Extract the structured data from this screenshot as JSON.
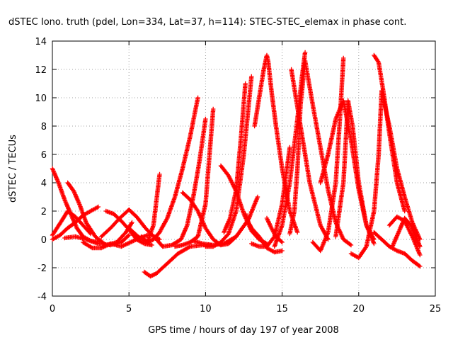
{
  "chart_data": {
    "type": "scatter",
    "title": "dSTEC Iono. truth (pdel, Lon=334, Lat=37, h=114): STEC-STEC_elemax in phase cont.",
    "xlabel": "GPS time / hours of day 197 of year 2008",
    "ylabel": "dSTEC  / TECUs",
    "xlim": [
      0,
      25
    ],
    "ylim": [
      -4,
      14
    ],
    "xticks": [
      0,
      5,
      10,
      15,
      20,
      25
    ],
    "yticks": [
      -4,
      -2,
      0,
      2,
      4,
      6,
      8,
      10,
      12,
      14
    ],
    "grid": true,
    "marker": "+",
    "color": "#ff0000",
    "arcs": [
      {
        "x": [
          0.0,
          0.4,
          0.8,
          1.2,
          1.6,
          2.0,
          2.5,
          3.0
        ],
        "y": [
          5.0,
          4.0,
          2.8,
          1.8,
          0.8,
          0.2,
          -0.1,
          -0.2
        ]
      },
      {
        "x": [
          0.0,
          0.5,
          1.0,
          1.5,
          2.0,
          2.5,
          3.0
        ],
        "y": [
          0.0,
          0.3,
          0.8,
          1.2,
          1.7,
          2.0,
          2.3
        ]
      },
      {
        "x": [
          0.0,
          0.3,
          0.6,
          1.0,
          1.5,
          2.0,
          2.5
        ],
        "y": [
          0.3,
          0.8,
          1.3,
          2.0,
          1.6,
          1.0,
          0.4
        ]
      },
      {
        "x": [
          1.0,
          1.4,
          1.8,
          2.2,
          2.8,
          3.5,
          4.2,
          4.8,
          5.2
        ],
        "y": [
          4.0,
          3.4,
          2.4,
          1.2,
          0.2,
          -0.4,
          -0.2,
          0.5,
          1.2
        ]
      },
      {
        "x": [
          0.8,
          1.5,
          2.2,
          3.0,
          3.8,
          4.5,
          5.0
        ],
        "y": [
          0.1,
          0.2,
          0.0,
          -0.3,
          -0.4,
          -0.2,
          0.3
        ]
      },
      {
        "x": [
          2.0,
          2.6,
          3.2,
          3.8,
          4.5,
          5.5,
          6.2
        ],
        "y": [
          -0.2,
          -0.6,
          -0.6,
          -0.3,
          -0.5,
          0.0,
          0.3
        ]
      },
      {
        "x": [
          3.5,
          4.0,
          4.5,
          5.0,
          5.5,
          6.0,
          6.5
        ],
        "y": [
          2.0,
          1.8,
          1.3,
          0.7,
          0.0,
          -0.3,
          -0.4
        ]
      },
      {
        "x": [
          3.2,
          3.8,
          4.4,
          5.0,
          5.5,
          6.0,
          6.5,
          7.0
        ],
        "y": [
          0.2,
          0.8,
          1.5,
          2.1,
          1.6,
          0.9,
          0.3,
          0.0
        ]
      },
      {
        "x": [
          5.0,
          5.6,
          6.2,
          6.6,
          7.0
        ],
        "y": [
          0.8,
          0.2,
          -0.2,
          1.0,
          4.6
        ]
      },
      {
        "x": [
          5.8,
          6.2,
          6.6,
          7.0,
          7.5,
          8.0,
          8.5,
          9.0,
          9.5
        ],
        "y": [
          0.2,
          -0.2,
          0.0,
          0.5,
          1.5,
          3.0,
          5.0,
          7.3,
          10.0
        ]
      },
      {
        "x": [
          6.0,
          6.4,
          6.8,
          7.4,
          8.2,
          9.0,
          9.8,
          10.4
        ],
        "y": [
          -2.3,
          -2.6,
          -2.4,
          -1.8,
          -1.0,
          -0.5,
          -0.4,
          -0.4
        ]
      },
      {
        "x": [
          6.8,
          7.2,
          7.8,
          8.4,
          8.8,
          9.2,
          9.6,
          10.0
        ],
        "y": [
          0.0,
          -0.5,
          -0.4,
          0.0,
          1.0,
          3.0,
          5.5,
          8.5
        ]
      },
      {
        "x": [
          8.0,
          8.5,
          9.0,
          9.5,
          10.0,
          10.5
        ],
        "y": [
          -0.5,
          -0.4,
          -0.2,
          0.2,
          2.5,
          9.2
        ]
      },
      {
        "x": [
          8.5,
          9.0,
          9.5,
          10.0,
          10.5,
          11.0,
          11.5,
          12.0
        ],
        "y": [
          3.3,
          2.8,
          2.0,
          0.8,
          0.0,
          -0.4,
          -0.3,
          0.2
        ]
      },
      {
        "x": [
          9.2,
          9.8,
          10.5,
          11.2,
          12.0,
          12.8,
          13.4
        ],
        "y": [
          -0.1,
          -0.3,
          -0.4,
          -0.3,
          0.2,
          1.4,
          3.0
        ]
      },
      {
        "x": [
          10.0,
          10.5,
          11.0,
          11.5,
          12.0,
          12.5,
          13.0
        ],
        "y": [
          -0.5,
          -0.5,
          -0.2,
          0.4,
          2.0,
          6.0,
          11.5
        ]
      },
      {
        "x": [
          11.0,
          11.5,
          12.0,
          12.5,
          13.0,
          13.5,
          14.0
        ],
        "y": [
          5.2,
          4.5,
          3.4,
          1.8,
          0.6,
          0.0,
          -0.3
        ]
      },
      {
        "x": [
          11.2,
          11.6,
          12.0,
          12.3,
          12.6
        ],
        "y": [
          0.5,
          1.5,
          3.5,
          7.0,
          11.0
        ]
      },
      {
        "x": [
          12.6,
          12.8,
          13.0,
          13.5,
          14.0,
          14.5,
          15.0
        ],
        "y": [
          1.8,
          1.2,
          0.8,
          0.2,
          -0.6,
          -0.9,
          -0.8
        ]
      },
      {
        "x": [
          13.2,
          13.5,
          13.8,
          14.0,
          14.1,
          14.3,
          14.6,
          15.0,
          15.5,
          16.0
        ],
        "y": [
          8.0,
          10.0,
          12.0,
          13.0,
          12.5,
          10.5,
          8.0,
          5.0,
          2.0,
          0.5
        ]
      },
      {
        "x": [
          13.0,
          13.5,
          14.0,
          14.5,
          15.0,
          15.5
        ],
        "y": [
          -0.3,
          -0.5,
          -0.5,
          0.2,
          2.5,
          6.5
        ]
      },
      {
        "x": [
          14.5,
          15.0,
          15.5,
          16.0,
          16.3,
          16.5
        ],
        "y": [
          -0.5,
          1.0,
          4.0,
          8.5,
          11.5,
          13.2
        ]
      },
      {
        "x": [
          14.0,
          14.3,
          14.6,
          15.0
        ],
        "y": [
          1.5,
          0.8,
          0.2,
          -0.2
        ]
      },
      {
        "x": [
          15.5,
          15.8,
          16.0,
          16.2,
          16.5,
          17.0,
          17.5,
          18.0,
          18.5,
          19.0,
          19.5
        ],
        "y": [
          0.4,
          2.0,
          5.0,
          9.5,
          12.6,
          9.5,
          6.5,
          3.5,
          1.2,
          0.0,
          -0.4
        ]
      },
      {
        "x": [
          15.6,
          16.2,
          16.8,
          17.5,
          18.0
        ],
        "y": [
          12.0,
          8.0,
          4.0,
          1.0,
          0.0
        ]
      },
      {
        "x": [
          17.0,
          17.5,
          18.0,
          18.5,
          18.8,
          19.0
        ],
        "y": [
          -0.2,
          -0.8,
          0.5,
          4.0,
          9.0,
          12.8
        ]
      },
      {
        "x": [
          17.5,
          18.0,
          18.5,
          19.0,
          19.5,
          20.0,
          20.5,
          21.0
        ],
        "y": [
          4.0,
          6.0,
          8.5,
          9.8,
          7.0,
          3.5,
          1.0,
          -0.3
        ]
      },
      {
        "x": [
          18.5,
          19.0,
          19.3,
          19.6,
          20.0,
          20.5,
          21.0
        ],
        "y": [
          0.2,
          4.0,
          9.8,
          8.0,
          4.0,
          1.0,
          0.0
        ]
      },
      {
        "x": [
          19.5,
          20.0,
          20.5,
          21.0,
          21.3,
          21.5,
          22.0,
          22.5,
          23.0,
          23.5,
          24.0
        ],
        "y": [
          -1.0,
          -1.3,
          -0.5,
          2.0,
          6.0,
          10.5,
          8.0,
          5.0,
          3.0,
          1.2,
          0.0
        ]
      },
      {
        "x": [
          21.0,
          21.3,
          21.6,
          22.0,
          22.5,
          23.0
        ],
        "y": [
          13.0,
          12.5,
          10.5,
          7.5,
          4.0,
          2.0
        ]
      },
      {
        "x": [
          21.0,
          21.5,
          22.0,
          22.5,
          23.0,
          23.5,
          24.0
        ],
        "y": [
          0.5,
          0.0,
          -0.5,
          -0.8,
          -1.0,
          -1.5,
          -1.9
        ]
      },
      {
        "x": [
          22.0,
          22.5,
          23.0,
          23.5,
          24.0
        ],
        "y": [
          1.0,
          1.6,
          1.3,
          0.2,
          -1.1
        ]
      },
      {
        "x": [
          22.2,
          22.6,
          23.0,
          23.4,
          23.8,
          24.0
        ],
        "y": [
          -0.5,
          0.5,
          1.5,
          1.0,
          0.0,
          -0.5
        ]
      }
    ]
  }
}
